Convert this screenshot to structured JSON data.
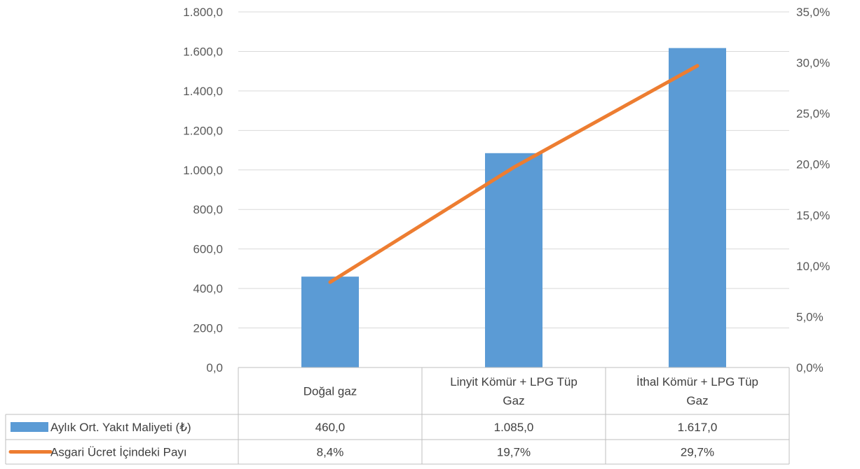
{
  "chart_data": {
    "type": "bar",
    "title": "",
    "categories": [
      "Doğal gaz",
      "Linyit Kömür + LPG Tüp Gaz",
      "İthal Kömür + LPG Tüp Gaz"
    ],
    "category_lines": [
      [
        "Doğal gaz"
      ],
      [
        "Linyit Kömür + LPG Tüp",
        "Gaz"
      ],
      [
        "İthal Kömür + LPG Tüp",
        "Gaz"
      ]
    ],
    "series": [
      {
        "name": "Aylık Ort. Yakıt Maliyeti (₺)",
        "type": "bar",
        "axis": "primary",
        "color": "#5B9BD5",
        "values": [
          460.0,
          1085.0,
          1617.0
        ],
        "labels": [
          "460,0",
          "1.085,0",
          "1.617,0"
        ]
      },
      {
        "name": "Asgari Ücret İçindeki Payı",
        "type": "line",
        "axis": "secondary",
        "color": "#ED7D31",
        "values": [
          8.4,
          19.7,
          29.7
        ],
        "labels": [
          "8,4%",
          "19,7%",
          "29,7%"
        ]
      }
    ],
    "y_primary": {
      "ylim": [
        0,
        1800
      ],
      "ticks": [
        "0,0",
        "200,0",
        "400,0",
        "600,0",
        "800,0",
        "1.000,0",
        "1.200,0",
        "1.400,0",
        "1.600,0",
        "1.800,0"
      ]
    },
    "y_secondary": {
      "ylim": [
        0,
        35
      ],
      "ticks": [
        "0,0%",
        "5,0%",
        "10,0%",
        "15,0%",
        "20,0%",
        "25,0%",
        "30,0%",
        "35,0%"
      ]
    },
    "grid": true,
    "legend": "data-table",
    "data_table": true
  }
}
